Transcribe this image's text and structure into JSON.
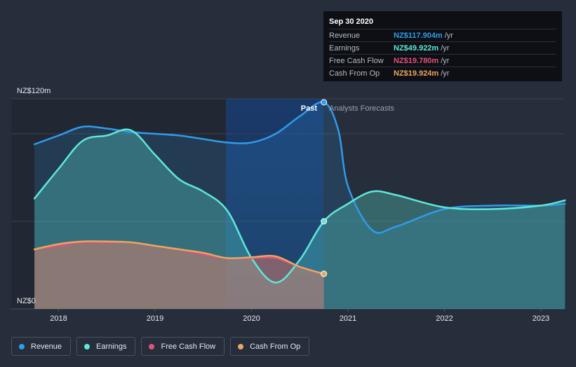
{
  "tooltip": {
    "date": "Sep 30 2020",
    "rows": [
      {
        "label": "Revenue",
        "value": "NZ$117.904m",
        "unit": "/yr",
        "color": "#2f9bea"
      },
      {
        "label": "Earnings",
        "value": "NZ$49.922m",
        "unit": "/yr",
        "color": "#5ee8d8"
      },
      {
        "label": "Free Cash Flow",
        "value": "NZ$19.780m",
        "unit": "/yr",
        "color": "#e2517e"
      },
      {
        "label": "Cash From Op",
        "value": "NZ$19.924m",
        "unit": "/yr",
        "color": "#e9a661"
      }
    ]
  },
  "legend": [
    {
      "label": "Revenue",
      "color": "#2f9bea"
    },
    {
      "label": "Earnings",
      "color": "#5ee8d8"
    },
    {
      "label": "Free Cash Flow",
      "color": "#e2517e"
    },
    {
      "label": "Cash From Op",
      "color": "#e9a661"
    }
  ],
  "chart_data": {
    "type": "area",
    "ylim": [
      0,
      120
    ],
    "y_tick_labels": [
      "NZ$120m",
      "NZ$0"
    ],
    "x_tick_labels": [
      "2018",
      "2019",
      "2020",
      "2021",
      "2022",
      "2023"
    ],
    "past_label": "Past",
    "forecast_label": "Analysts Forecasts",
    "series": [
      {
        "name": "Revenue",
        "color": "#2f9bea",
        "x": [
          2017.75,
          2018.0,
          2018.25,
          2018.5,
          2018.75,
          2019.0,
          2019.25,
          2019.5,
          2019.75,
          2020.0,
          2020.25,
          2020.5,
          2020.75,
          2020.9,
          2021.0,
          2021.25,
          2021.5,
          2022.0,
          2022.5,
          2023.0,
          2023.25
        ],
        "y": [
          94,
          99,
          104,
          103,
          101,
          100,
          99,
          97,
          95,
          95,
          100,
          110,
          118,
          102,
          70,
          45,
          47,
          57,
          59,
          59,
          60
        ]
      },
      {
        "name": "Earnings",
        "color": "#5ee8d8",
        "x": [
          2017.75,
          2018.0,
          2018.25,
          2018.5,
          2018.75,
          2019.0,
          2019.25,
          2019.5,
          2019.75,
          2020.0,
          2020.25,
          2020.5,
          2020.75,
          2021.0,
          2021.25,
          2021.5,
          2022.0,
          2022.5,
          2023.0,
          2023.25
        ],
        "y": [
          63,
          80,
          96,
          99,
          102,
          88,
          74,
          67,
          56,
          29,
          15,
          28,
          50,
          60,
          67,
          65,
          58,
          57,
          59,
          62
        ]
      },
      {
        "name": "Free Cash Flow",
        "color": "#e2517e",
        "x": [
          2017.75,
          2018.0,
          2018.25,
          2018.5,
          2018.75,
          2019.0,
          2019.25,
          2019.5,
          2019.75,
          2020.0,
          2020.25,
          2020.5,
          2020.75
        ],
        "y": [
          34,
          36,
          38,
          38,
          38,
          36,
          34,
          31,
          29,
          29,
          29,
          24,
          20
        ]
      },
      {
        "name": "Cash From Op",
        "color": "#e9a661",
        "x": [
          2017.75,
          2018.0,
          2018.25,
          2018.5,
          2018.75,
          2019.0,
          2019.25,
          2019.5,
          2019.75,
          2020.0,
          2020.25,
          2020.5,
          2020.75
        ],
        "y": [
          34,
          37,
          38.5,
          38.5,
          38,
          36,
          34,
          32,
          29,
          29.5,
          30,
          24,
          20
        ]
      }
    ]
  }
}
